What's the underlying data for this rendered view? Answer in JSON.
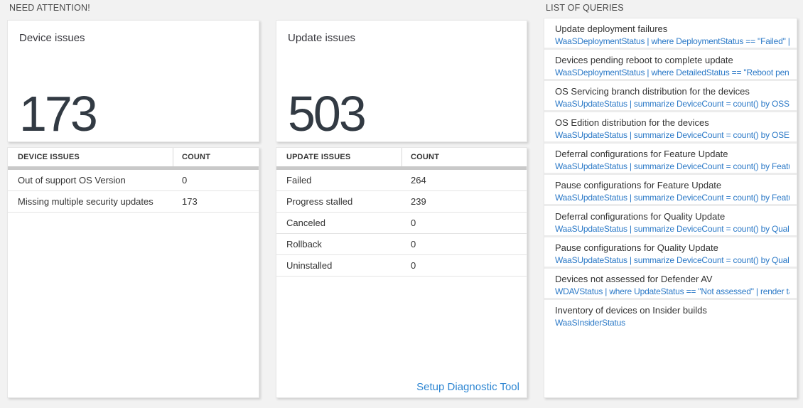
{
  "colors": {
    "page_background": "#f2f2f2",
    "card_background": "#ffffff",
    "query_link_blue": "#2b79c7",
    "setup_link_blue": "#2e86d2",
    "big_number_color": "#323a43",
    "header_bar_gray": "#c9c9c9"
  },
  "need_attention": {
    "label": "NEED ATTENTION!",
    "device_card": {
      "title": "Device issues",
      "count": "173"
    },
    "device_table": {
      "headers": [
        "DEVICE ISSUES",
        "COUNT"
      ],
      "rows": [
        {
          "label": "Out of support OS Version",
          "count": "0"
        },
        {
          "label": "Missing multiple security updates",
          "count": "173"
        }
      ]
    },
    "update_card": {
      "title": "Update issues",
      "count": "503"
    },
    "update_table": {
      "headers": [
        "UPDATE ISSUES",
        "COUNT"
      ],
      "rows": [
        {
          "label": "Failed",
          "count": "264"
        },
        {
          "label": "Progress stalled",
          "count": "239"
        },
        {
          "label": "Canceled",
          "count": "0"
        },
        {
          "label": "Rollback",
          "count": "0"
        },
        {
          "label": "Uninstalled",
          "count": "0"
        }
      ],
      "footer_link": "Setup Diagnostic Tool"
    }
  },
  "queries": {
    "label": "LIST OF QUERIES",
    "items": [
      {
        "title": "Update deployment failures",
        "query": "WaaSDeploymentStatus | where DeploymentStatus == \"Failed\" |..."
      },
      {
        "title": "Devices pending reboot to complete update",
        "query": "WaaSDeploymentStatus | where DetailedStatus == \"Reboot pend..."
      },
      {
        "title": "OS Servicing branch distribution for the devices",
        "query": "WaaSUpdateStatus | summarize DeviceCount = count() by OSSer..."
      },
      {
        "title": "OS Edition distribution for the devices",
        "query": "WaaSUpdateStatus | summarize DeviceCount = count() by OSEdit..."
      },
      {
        "title": "Deferral configurations for Feature Update",
        "query": "WaaSUpdateStatus | summarize DeviceCount = count() by Featur..."
      },
      {
        "title": "Pause configurations for Feature Update",
        "query": "WaaSUpdateStatus | summarize DeviceCount = count() by Featur..."
      },
      {
        "title": "Deferral configurations for Quality Update",
        "query": "WaaSUpdateStatus | summarize DeviceCount = count() by Qualit..."
      },
      {
        "title": "Pause configurations for Quality Update",
        "query": "WaaSUpdateStatus | summarize DeviceCount = count() by Qualit..."
      },
      {
        "title": "Devices not assessed for Defender AV",
        "query": "WDAVStatus | where UpdateStatus == \"Not assessed\" | render ta..."
      },
      {
        "title": "Inventory of devices on Insider builds",
        "query": "WaaSInsiderStatus"
      }
    ]
  }
}
